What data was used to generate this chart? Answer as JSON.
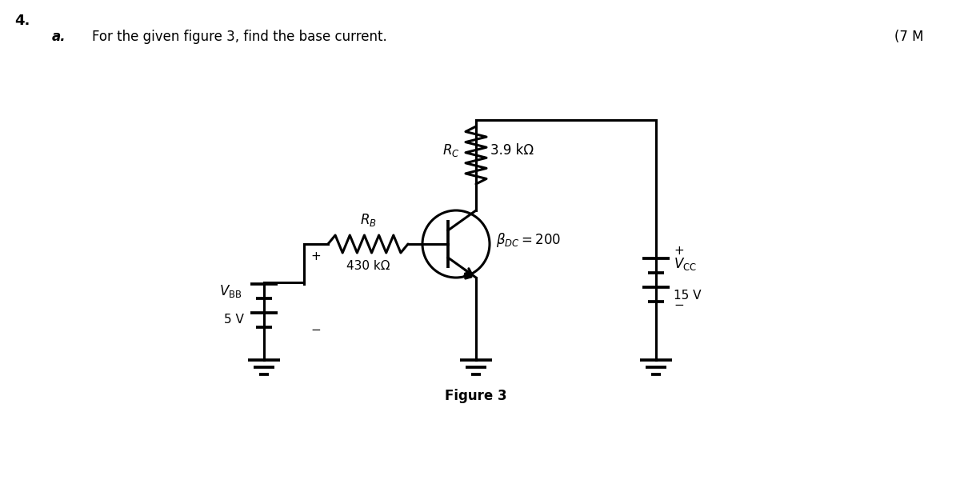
{
  "title_number": "4.",
  "question_label": "a.",
  "question_text": "For the given figure 3, find the base current.",
  "marks_text": "(7 M",
  "figure_label": "Figure 3",
  "bg_color": "#ffffff",
  "line_color": "#000000",
  "font_color": "#000000",
  "rc_label": "$R_C$",
  "rc_value": "3.9 kΩ",
  "rb_label": "$R_B$",
  "rb_value": "430 kΩ",
  "beta_label": "$\\beta_{DC}$ = 200",
  "vcc_label": "$V_{\\mathrm{CC}}$",
  "vcc_value": "15 V",
  "vbb_label": "$V_{\\mathrm{BB}}$",
  "vbb_value": "5 V",
  "plus_sign": "+",
  "minus_sign": "−"
}
